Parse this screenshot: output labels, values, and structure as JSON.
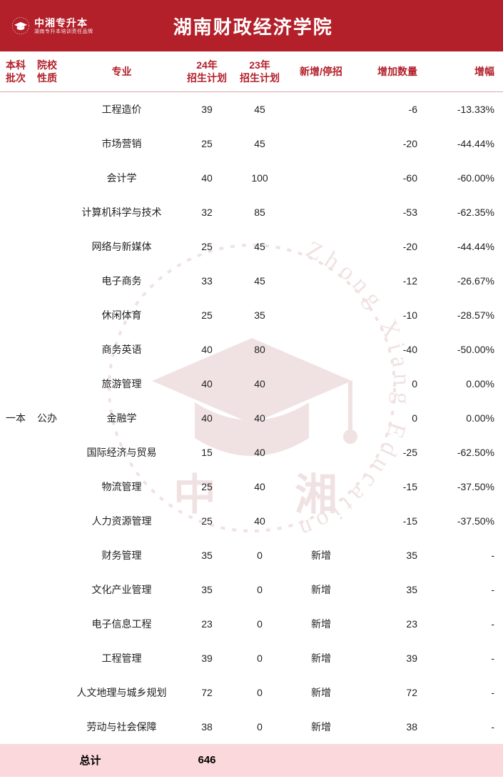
{
  "header": {
    "logo_main": "中湘专升本",
    "logo_sub": "湖南专升本培训责任品牌",
    "title": "湖南财政经济学院"
  },
  "watermark": {
    "ring_text": "Zhong Xiang Education",
    "center_chars": [
      "中",
      "湘"
    ],
    "cap_color": "#8b1a1a",
    "ring_color": "#8b1a1a"
  },
  "columns": [
    {
      "key": "batch",
      "label": "本科\n批次"
    },
    {
      "key": "nature",
      "label": "院校\n性质"
    },
    {
      "key": "major",
      "label": "专业"
    },
    {
      "key": "plan24",
      "label": "24年\n招生计划"
    },
    {
      "key": "plan23",
      "label": "23年\n招生计划"
    },
    {
      "key": "status",
      "label": "新增/停招"
    },
    {
      "key": "delta",
      "label": "增加数量"
    },
    {
      "key": "pct",
      "label": "增幅"
    }
  ],
  "merged": {
    "batch": "一本",
    "nature": "公办"
  },
  "rows": [
    {
      "major": "工程造价",
      "plan24": "39",
      "plan23": "45",
      "status": "",
      "delta": "-6",
      "pct": "-13.33%"
    },
    {
      "major": "市场营销",
      "plan24": "25",
      "plan23": "45",
      "status": "",
      "delta": "-20",
      "pct": "-44.44%"
    },
    {
      "major": "会计学",
      "plan24": "40",
      "plan23": "100",
      "status": "",
      "delta": "-60",
      "pct": "-60.00%"
    },
    {
      "major": "计算机科学与技术",
      "plan24": "32",
      "plan23": "85",
      "status": "",
      "delta": "-53",
      "pct": "-62.35%"
    },
    {
      "major": "网络与新媒体",
      "plan24": "25",
      "plan23": "45",
      "status": "",
      "delta": "-20",
      "pct": "-44.44%"
    },
    {
      "major": "电子商务",
      "plan24": "33",
      "plan23": "45",
      "status": "",
      "delta": "-12",
      "pct": "-26.67%"
    },
    {
      "major": "休闲体育",
      "plan24": "25",
      "plan23": "35",
      "status": "",
      "delta": "-10",
      "pct": "-28.57%"
    },
    {
      "major": "商务英语",
      "plan24": "40",
      "plan23": "80",
      "status": "",
      "delta": "-40",
      "pct": "-50.00%"
    },
    {
      "major": "旅游管理",
      "plan24": "40",
      "plan23": "40",
      "status": "",
      "delta": "0",
      "pct": "0.00%"
    },
    {
      "major": "金融学",
      "plan24": "40",
      "plan23": "40",
      "status": "",
      "delta": "0",
      "pct": "0.00%"
    },
    {
      "major": "国际经济与贸易",
      "plan24": "15",
      "plan23": "40",
      "status": "",
      "delta": "-25",
      "pct": "-62.50%"
    },
    {
      "major": "物流管理",
      "plan24": "25",
      "plan23": "40",
      "status": "",
      "delta": "-15",
      "pct": "-37.50%"
    },
    {
      "major": "人力资源管理",
      "plan24": "25",
      "plan23": "40",
      "status": "",
      "delta": "-15",
      "pct": "-37.50%"
    },
    {
      "major": "财务管理",
      "plan24": "35",
      "plan23": "0",
      "status": "新增",
      "delta": "35",
      "pct": "-"
    },
    {
      "major": "文化产业管理",
      "plan24": "35",
      "plan23": "0",
      "status": "新增",
      "delta": "35",
      "pct": "-"
    },
    {
      "major": "电子信息工程",
      "plan24": "23",
      "plan23": "0",
      "status": "新增",
      "delta": "23",
      "pct": "-"
    },
    {
      "major": "工程管理",
      "plan24": "39",
      "plan23": "0",
      "status": "新增",
      "delta": "39",
      "pct": "-"
    },
    {
      "major": "人文地理与城乡规划",
      "plan24": "72",
      "plan23": "0",
      "status": "新增",
      "delta": "72",
      "pct": "-"
    },
    {
      "major": "劳动与社会保障",
      "plan24": "38",
      "plan23": "0",
      "status": "新增",
      "delta": "38",
      "pct": "-"
    }
  ],
  "footer": {
    "label": "总计",
    "total24": "646"
  },
  "colors": {
    "header_bg": "#b3202a",
    "header_fg": "#ffffff",
    "th_fg": "#b3202a",
    "row_fg": "#222222",
    "footer_bg": "#fbd8db",
    "border": "#d9a6aa"
  }
}
